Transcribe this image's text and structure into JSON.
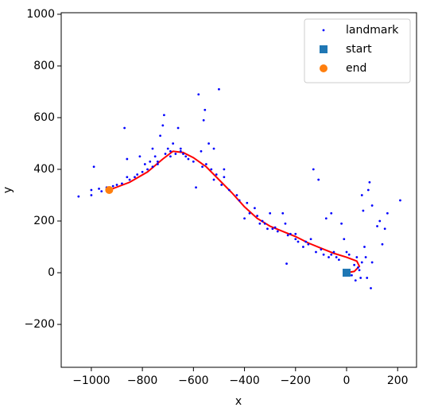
{
  "chart_data": {
    "type": "scatter",
    "xlabel": "x",
    "ylabel": "y",
    "xlim": [
      -1118,
      274
    ],
    "ylim": [
      -366,
      1006
    ],
    "xticks": [
      {
        "value": -1000,
        "label": "−1000"
      },
      {
        "value": -800,
        "label": "−800"
      },
      {
        "value": -600,
        "label": "−600"
      },
      {
        "value": -400,
        "label": "−400"
      },
      {
        "value": -200,
        "label": "−200"
      },
      0,
      200
    ],
    "yticks": [
      {
        "value": -200,
        "label": "−200"
      },
      0,
      200,
      400,
      600,
      800,
      1000
    ],
    "legend": "upper right",
    "trajectory": {
      "color": "#ff0000",
      "x": [
        -930,
        -850,
        -780,
        -720,
        -680,
        -640,
        -600,
        -550,
        -500,
        -450,
        -400,
        -350,
        -300,
        -250,
        -200,
        -150,
        -100,
        -50,
        0,
        40,
        50,
        30,
        0
      ],
      "y": [
        320,
        350,
        390,
        440,
        470,
        465,
        445,
        410,
        360,
        310,
        255,
        210,
        180,
        160,
        140,
        115,
        95,
        75,
        60,
        45,
        25,
        5,
        0
      ]
    },
    "series": [
      {
        "name": "landmark",
        "color": "#0000ff",
        "marker": "dot",
        "x": [
          -1050,
          -1000,
          -990,
          -960,
          -940,
          -920,
          -900,
          -880,
          -870,
          -860,
          -850,
          -830,
          -820,
          -810,
          -800,
          -790,
          -780,
          -770,
          -760,
          -750,
          -740,
          -730,
          -720,
          -715,
          -700,
          -690,
          -680,
          -670,
          -660,
          -650,
          -640,
          -620,
          -600,
          -590,
          -580,
          -570,
          -560,
          -555,
          -550,
          -540,
          -530,
          -520,
          -510,
          -500,
          -490,
          -480,
          -460,
          -430,
          -400,
          -390,
          -380,
          -360,
          -350,
          -330,
          -320,
          -300,
          -290,
          -270,
          -250,
          -240,
          -220,
          -200,
          -190,
          -170,
          -150,
          -130,
          -120,
          -110,
          -100,
          -90,
          -80,
          -70,
          -60,
          -50,
          -40,
          -30,
          -20,
          -10,
          0,
          10,
          20,
          30,
          40,
          45,
          50,
          55,
          60,
          60,
          65,
          70,
          75,
          80,
          85,
          90,
          95,
          100,
          100,
          120,
          130,
          140,
          150,
          160,
          210,
          -860,
          -940,
          -915,
          -740,
          -710,
          -630,
          -565,
          -520,
          -420,
          -340,
          -280,
          -230,
          -160,
          -60,
          35,
          -140,
          -480,
          -760,
          -690,
          -1000,
          -970,
          -650,
          -310,
          -200,
          -235
        ],
        "y": [
          295,
          300,
          410,
          315,
          330,
          320,
          340,
          345,
          560,
          440,
          360,
          370,
          380,
          450,
          390,
          420,
          400,
          430,
          480,
          450,
          420,
          530,
          570,
          610,
          480,
          470,
          500,
          460,
          560,
          470,
          460,
          440,
          430,
          330,
          690,
          470,
          590,
          630,
          420,
          500,
          400,
          480,
          380,
          710,
          340,
          400,
          320,
          300,
          210,
          270,
          230,
          250,
          220,
          200,
          190,
          230,
          170,
          160,
          230,
          190,
          150,
          150,
          120,
          100,
          110,
          400,
          80,
          360,
          90,
          70,
          210,
          60,
          230,
          80,
          60,
          50,
          190,
          130,
          80,
          70,
          -10,
          30,
          60,
          20,
          10,
          -20,
          300,
          40,
          240,
          100,
          60,
          -20,
          320,
          350,
          -60,
          260,
          40,
          180,
          200,
          110,
          170,
          230,
          280,
          370,
          325,
          335,
          430,
          460,
          450,
          410,
          360,
          280,
          190,
          175,
          145,
          120,
          70,
          -30,
          130,
          370,
          410,
          450,
          320,
          325,
          480,
          170,
          130,
          35
        ]
      },
      {
        "name": "start",
        "color": "#1f77b4",
        "marker": "square",
        "x": [
          0
        ],
        "y": [
          0
        ]
      },
      {
        "name": "end",
        "color": "#ff7f0e",
        "marker": "circle",
        "x": [
          -930
        ],
        "y": [
          320
        ]
      }
    ]
  }
}
